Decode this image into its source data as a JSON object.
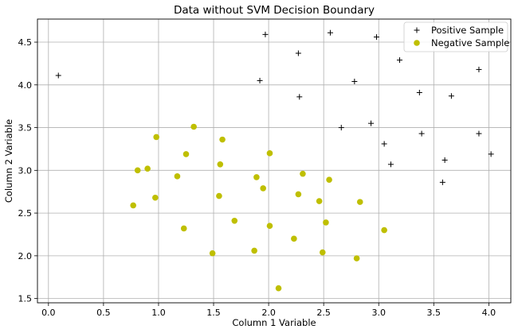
{
  "chart_data": {
    "type": "scatter",
    "title": "Data without SVM Decision Boundary",
    "xlabel": "Column 1 Variable",
    "ylabel": "Column 2 Variable",
    "xlim": [
      -0.1,
      4.2
    ],
    "ylim": [
      1.45,
      4.77
    ],
    "xticks": [
      0.0,
      0.5,
      1.0,
      1.5,
      2.0,
      2.5,
      3.0,
      3.5,
      4.0
    ],
    "xtick_labels": [
      "0.0",
      "0.5",
      "1.0",
      "1.5",
      "2.0",
      "2.5",
      "3.0",
      "3.5",
      "4.0"
    ],
    "yticks": [
      1.5,
      2.0,
      2.5,
      3.0,
      3.5,
      4.0,
      4.5
    ],
    "ytick_labels": [
      "1.5",
      "2.0",
      "2.5",
      "3.0",
      "3.5",
      "4.0",
      "4.5"
    ],
    "grid": true,
    "legend_position": "top-right",
    "series": [
      {
        "name": "Positive Sample",
        "marker": "plus",
        "color": "#000000",
        "points": [
          [
            0.09,
            4.11
          ],
          [
            1.92,
            4.05
          ],
          [
            1.97,
            4.59
          ],
          [
            2.27,
            4.37
          ],
          [
            2.28,
            3.86
          ],
          [
            2.56,
            4.61
          ],
          [
            2.66,
            3.5
          ],
          [
            2.78,
            4.04
          ],
          [
            2.93,
            3.55
          ],
          [
            2.98,
            4.56
          ],
          [
            3.05,
            3.31
          ],
          [
            3.11,
            3.07
          ],
          [
            3.19,
            4.29
          ],
          [
            3.37,
            3.91
          ],
          [
            3.39,
            3.43
          ],
          [
            3.58,
            2.86
          ],
          [
            3.6,
            3.12
          ],
          [
            3.66,
            3.87
          ],
          [
            3.91,
            3.43
          ],
          [
            3.91,
            4.18
          ],
          [
            4.02,
            3.19
          ]
        ]
      },
      {
        "name": "Negative Sample",
        "marker": "circle",
        "color": "#bfbf00",
        "points": [
          [
            0.77,
            2.59
          ],
          [
            0.81,
            3.0
          ],
          [
            0.9,
            3.02
          ],
          [
            0.97,
            2.68
          ],
          [
            0.98,
            3.39
          ],
          [
            1.17,
            2.93
          ],
          [
            1.23,
            2.32
          ],
          [
            1.25,
            3.19
          ],
          [
            1.32,
            3.51
          ],
          [
            1.49,
            2.03
          ],
          [
            1.55,
            2.7
          ],
          [
            1.56,
            3.07
          ],
          [
            1.58,
            3.36
          ],
          [
            1.69,
            2.41
          ],
          [
            1.87,
            2.06
          ],
          [
            1.89,
            2.92
          ],
          [
            1.95,
            2.79
          ],
          [
            2.01,
            2.35
          ],
          [
            2.01,
            3.2
          ],
          [
            2.09,
            1.62
          ],
          [
            2.23,
            2.2
          ],
          [
            2.27,
            2.72
          ],
          [
            2.31,
            2.96
          ],
          [
            2.46,
            2.64
          ],
          [
            2.49,
            2.04
          ],
          [
            2.52,
            2.39
          ],
          [
            2.55,
            2.89
          ],
          [
            2.8,
            1.97
          ],
          [
            2.83,
            2.63
          ],
          [
            3.05,
            2.3
          ]
        ]
      }
    ]
  }
}
